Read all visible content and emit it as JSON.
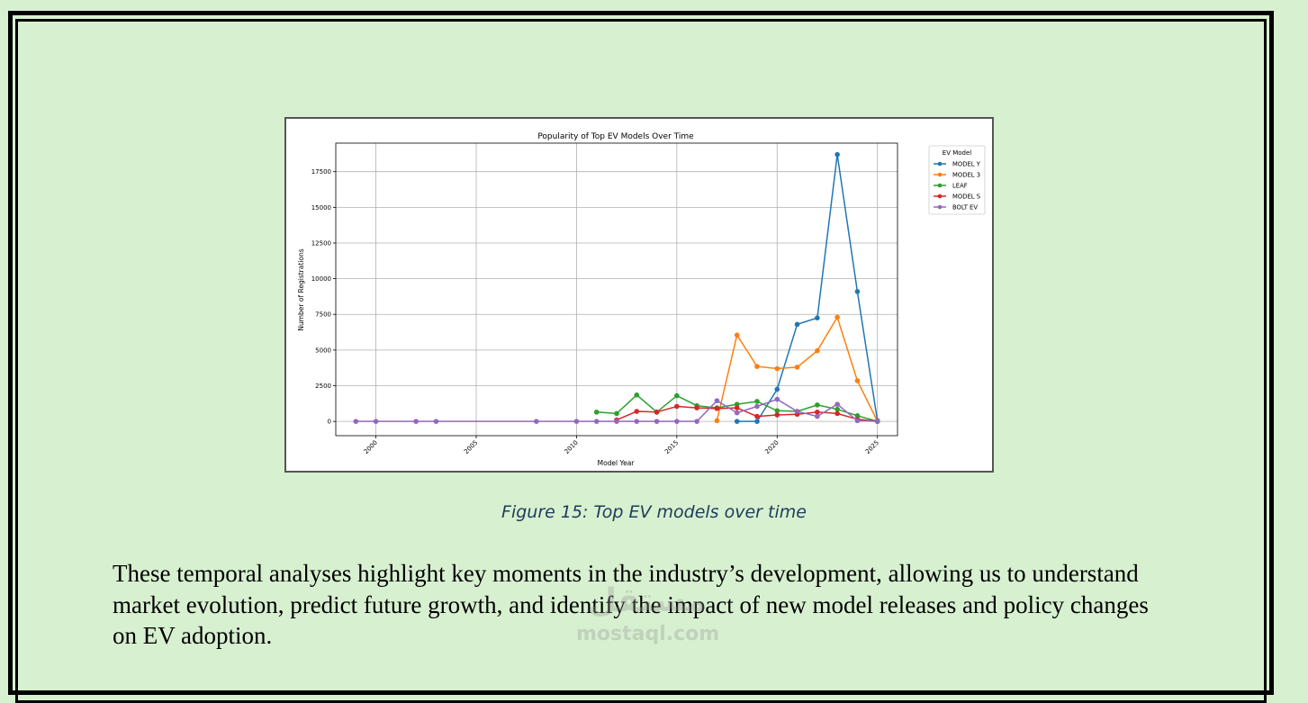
{
  "figure_caption": "Figure 15: Top EV models over time",
  "body_text": "These temporal analyses highlight key moments in the industry’s development, allowing us to understand market evolution, predict future growth, and identify the impact of new model releases and policy changes on EV adoption.",
  "watermark": {
    "arabic": "مستقل",
    "latin": "mostaql.com"
  },
  "chart_data": {
    "type": "line",
    "title": "Popularity of Top EV Models Over Time",
    "xlabel": "Model Year",
    "ylabel": "Number of Registrations",
    "xlim": [
      1998,
      2026
    ],
    "ylim": [
      -1000,
      19500
    ],
    "xticks": [
      2000,
      2005,
      2010,
      2015,
      2020,
      2025
    ],
    "yticks": [
      0,
      2500,
      5000,
      7500,
      10000,
      12500,
      15000,
      17500
    ],
    "grid": true,
    "legend_title": "EV Model",
    "legend_position": "outside-right",
    "series": [
      {
        "name": "MODEL Y",
        "color": "#1f77b4",
        "points": [
          [
            2018,
            0
          ],
          [
            2019,
            0
          ],
          [
            2020,
            2250
          ],
          [
            2021,
            6800
          ],
          [
            2022,
            7250
          ],
          [
            2023,
            18700
          ],
          [
            2024,
            9100
          ],
          [
            2025,
            50
          ]
        ]
      },
      {
        "name": "MODEL 3",
        "color": "#ff7f0e",
        "points": [
          [
            2017,
            50
          ],
          [
            2018,
            6050
          ],
          [
            2019,
            3850
          ],
          [
            2020,
            3700
          ],
          [
            2021,
            3800
          ],
          [
            2022,
            4950
          ],
          [
            2023,
            7300
          ],
          [
            2024,
            2850
          ],
          [
            2025,
            0
          ]
        ]
      },
      {
        "name": "LEAF",
        "color": "#2ca02c",
        "points": [
          [
            2011,
            650
          ],
          [
            2012,
            550
          ],
          [
            2013,
            1850
          ],
          [
            2014,
            650
          ],
          [
            2015,
            1800
          ],
          [
            2016,
            1100
          ],
          [
            2017,
            950
          ],
          [
            2018,
            1200
          ],
          [
            2019,
            1400
          ],
          [
            2020,
            750
          ],
          [
            2021,
            700
          ],
          [
            2022,
            1150
          ],
          [
            2023,
            850
          ],
          [
            2024,
            400
          ],
          [
            2025,
            0
          ]
        ]
      },
      {
        "name": "MODEL S",
        "color": "#d62728",
        "points": [
          [
            2012,
            100
          ],
          [
            2013,
            700
          ],
          [
            2014,
            650
          ],
          [
            2015,
            1050
          ],
          [
            2016,
            950
          ],
          [
            2017,
            900
          ],
          [
            2018,
            950
          ],
          [
            2019,
            350
          ],
          [
            2020,
            450
          ],
          [
            2021,
            500
          ],
          [
            2022,
            650
          ],
          [
            2023,
            550
          ],
          [
            2024,
            150
          ],
          [
            2025,
            0
          ]
        ]
      },
      {
        "name": "BOLT EV",
        "color": "#9467bd",
        "points": [
          [
            1999,
            0
          ],
          [
            2000,
            0
          ],
          [
            2002,
            0
          ],
          [
            2003,
            0
          ],
          [
            2008,
            0
          ],
          [
            2010,
            0
          ],
          [
            2011,
            0
          ],
          [
            2012,
            0
          ],
          [
            2013,
            0
          ],
          [
            2014,
            0
          ],
          [
            2015,
            0
          ],
          [
            2016,
            0
          ],
          [
            2017,
            1450
          ],
          [
            2018,
            600
          ],
          [
            2019,
            1050
          ],
          [
            2020,
            1550
          ],
          [
            2021,
            700
          ],
          [
            2022,
            350
          ],
          [
            2023,
            1200
          ],
          [
            2024,
            50
          ],
          [
            2025,
            0
          ]
        ]
      }
    ]
  }
}
